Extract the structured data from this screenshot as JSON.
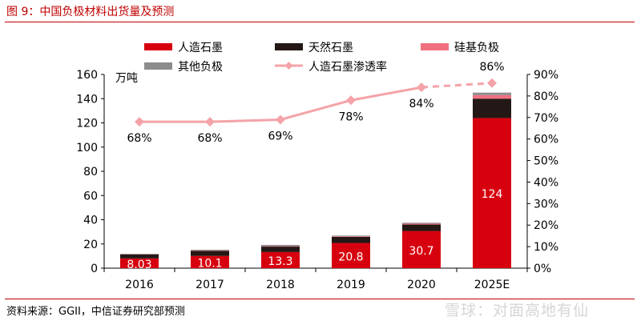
{
  "figure": {
    "title": "图 9：中国负极材料出货量及预测",
    "source": "资料来源：GGII，中信证券研究部预测",
    "watermark": "雪球：对面高地有仙"
  },
  "chart_data": {
    "type": "bar",
    "stacked": true,
    "categories": [
      "2016",
      "2017",
      "2018",
      "2019",
      "2020",
      "2025E"
    ],
    "y_left": {
      "label": "万吨",
      "ylim": [
        0,
        160
      ],
      "ticks": [
        "0",
        "20",
        "40",
        "60",
        "80",
        "100",
        "120",
        "140",
        "160"
      ]
    },
    "y_right": {
      "ylim": [
        0,
        90
      ],
      "ticks": [
        "0%",
        "10%",
        "20%",
        "30%",
        "40%",
        "50%",
        "60%",
        "70%",
        "80%",
        "90%"
      ]
    },
    "series": [
      {
        "name": "人造石墨",
        "color": "#d7000f",
        "values": [
          8.03,
          10.1,
          13.3,
          20.8,
          30.7,
          124
        ],
        "labels": [
          "8.03",
          "10.1",
          "13.3",
          "20.8",
          "30.7",
          "124"
        ]
      },
      {
        "name": "天然石墨",
        "color": "#231815",
        "values": [
          3.2,
          4.2,
          4.5,
          5.0,
          5.3,
          16
        ]
      },
      {
        "name": "硅基负极",
        "color": "#f0707f",
        "values": [
          0.2,
          0.3,
          0.4,
          0.5,
          0.7,
          3
        ]
      },
      {
        "name": "其他负极",
        "color": "#8c8c8c",
        "values": [
          0.5,
          0.6,
          1.0,
          0.6,
          0.8,
          2
        ]
      }
    ],
    "line": {
      "name": "人造石墨渗透率",
      "color": "#f4a3a8",
      "axis": "right",
      "values": [
        68,
        68,
        69,
        78,
        84,
        86
      ],
      "labels": [
        "68%",
        "68%",
        "69%",
        "78%",
        "84%",
        "86%"
      ],
      "dashed_from_index": 4
    },
    "legend_position": "top"
  }
}
